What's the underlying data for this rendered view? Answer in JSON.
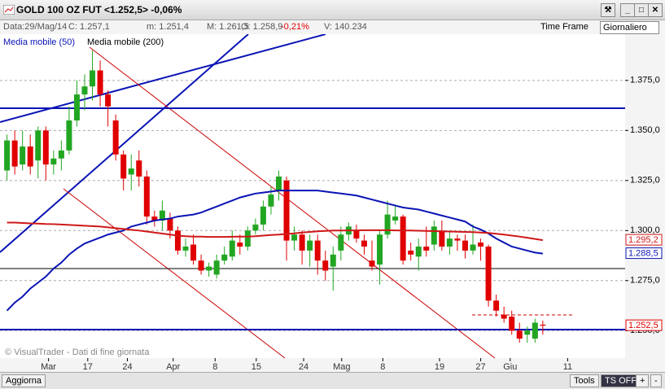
{
  "window": {
    "title": "GOLD 100 OZ FUT <1.252,5> -0,06%"
  },
  "info_bar": {
    "date": "Data:29/Mag/14",
    "close": "C: 1.257,1",
    "min": "m: 1.251,4",
    "max": "M: 1.261,5",
    "open": "O: 1.258,9",
    "change": "-0,21%",
    "volume": "V: 140.234",
    "time_frame": "Time Frame",
    "period": "Giornaliero"
  },
  "watermark": "© VisualTrader - Dati di fine giornata",
  "toolbar": {
    "refresh": "Aggiorna",
    "tools": "Tools",
    "ts": "TS OFF",
    "plus": "+",
    "minus": "-"
  },
  "chart_data": {
    "type": "candlestick",
    "up_color": "#22a622",
    "down_color": "#e00000",
    "grid": true,
    "ylim": [
      1236.3,
      1398.1
    ],
    "yticks": [
      {
        "value": 1250,
        "label": "1.250,0"
      },
      {
        "value": 1275,
        "label": "1.275,0"
      },
      {
        "value": 1300,
        "label": "1.300,0"
      },
      {
        "value": 1325,
        "label": "1.325,0"
      },
      {
        "value": 1350,
        "label": "1.350,0"
      },
      {
        "value": 1375,
        "label": "1.375,0"
      }
    ],
    "xlim": [
      -0.9,
      79.6
    ],
    "xticks": [
      {
        "value": 5.35,
        "label": "Mar"
      },
      {
        "value": 10.4,
        "label": "17"
      },
      {
        "value": 15.5,
        "label": "24"
      },
      {
        "value": 21.4,
        "label": "Apr"
      },
      {
        "value": 26.8,
        "label": "8"
      },
      {
        "value": 32.1,
        "label": "15"
      },
      {
        "value": 38.2,
        "label": "24"
      },
      {
        "value": 43.1,
        "label": "Mag"
      },
      {
        "value": 48.4,
        "label": "8"
      },
      {
        "value": 55.7,
        "label": "19"
      },
      {
        "value": 61,
        "label": "27"
      },
      {
        "value": 64.8,
        "label": "Giu"
      },
      {
        "value": 72.2,
        "label": "11"
      }
    ],
    "candles": {
      "open": [
        1330,
        1345,
        1333,
        1342,
        1335,
        1350,
        1333,
        1336,
        1340,
        1355,
        1368,
        1372,
        1380,
        1368,
        1355,
        1338,
        1328,
        1335,
        1327,
        1307,
        1305,
        1306,
        1300,
        1290,
        1293,
        1285,
        1280,
        1278,
        1285,
        1287,
        1294,
        1292,
        1300,
        1303,
        1312,
        1320,
        1325,
        1295,
        1298,
        1290,
        1295,
        1285,
        1282,
        1290,
        1298,
        1300,
        1295,
        1285,
        1283,
        1298,
        1305,
        1307,
        1290,
        1287,
        1292,
        1293,
        1300,
        1292,
        1296,
        1295,
        1290,
        1294,
        1292,
        1265,
        1258,
        1257,
        1250,
        1248,
        1246,
        1253
      ],
      "high": [
        1348,
        1350,
        1350,
        1348,
        1352,
        1352,
        1340,
        1345,
        1362,
        1375,
        1378,
        1390,
        1385,
        1370,
        1358,
        1340,
        1338,
        1340,
        1330,
        1310,
        1315,
        1309,
        1302,
        1296,
        1298,
        1288,
        1284,
        1288,
        1292,
        1300,
        1298,
        1302,
        1306,
        1315,
        1322,
        1330,
        1327,
        1302,
        1300,
        1298,
        1298,
        1290,
        1292,
        1302,
        1304,
        1303,
        1298,
        1295,
        1300,
        1315,
        1313,
        1308,
        1294,
        1296,
        1302,
        1305,
        1305,
        1300,
        1298,
        1298,
        1303,
        1296,
        1293,
        1268,
        1262,
        1260,
        1254,
        1252,
        1256,
        1255
      ],
      "low": [
        1325,
        1328,
        1330,
        1328,
        1326,
        1325,
        1328,
        1330,
        1338,
        1352,
        1360,
        1365,
        1362,
        1352,
        1335,
        1320,
        1320,
        1322,
        1303,
        1302,
        1300,
        1296,
        1288,
        1287,
        1283,
        1278,
        1277,
        1276,
        1283,
        1285,
        1288,
        1290,
        1298,
        1300,
        1308,
        1315,
        1285,
        1290,
        1283,
        1282,
        1278,
        1275,
        1270,
        1285,
        1295,
        1294,
        1288,
        1280,
        1273,
        1296,
        1303,
        1283,
        1285,
        1280,
        1287,
        1290,
        1290,
        1288,
        1290,
        1286,
        1288,
        1285,
        1262,
        1257,
        1254,
        1248,
        1244,
        1244,
        1244,
        1248
      ],
      "close": [
        1345,
        1332,
        1342,
        1332,
        1350,
        1333,
        1336,
        1340,
        1355,
        1368,
        1372,
        1380,
        1368,
        1362,
        1338,
        1326,
        1331,
        1327,
        1307,
        1305,
        1310,
        1300,
        1290,
        1292,
        1285,
        1280,
        1282,
        1285,
        1288,
        1295,
        1292,
        1300,
        1303,
        1312,
        1318,
        1327,
        1295,
        1298,
        1290,
        1295,
        1285,
        1280,
        1288,
        1298,
        1302,
        1296,
        1292,
        1282,
        1298,
        1308,
        1307,
        1285,
        1288,
        1292,
        1290,
        1302,
        1292,
        1296,
        1295,
        1290,
        1293,
        1292,
        1265,
        1260,
        1256,
        1250,
        1246,
        1250,
        1254,
        1252.5
      ],
      "close_label": "1.252,5"
    },
    "series": [
      {
        "name": "Media mobile (50)",
        "color": "#0a14b4",
        "last_value_label": "1.288,5",
        "values": [
          1260,
          1264,
          1267,
          1271,
          1274,
          1277,
          1281,
          1284,
          1288,
          1291,
          1293.5,
          1295,
          1296.5,
          1298,
          1299,
          1300,
          1302,
          1303,
          1304,
          1305,
          1305.5,
          1306,
          1307,
          1307.5,
          1308,
          1309,
          1310.5,
          1312,
          1313.5,
          1315,
          1316.5,
          1317.5,
          1318.5,
          1319,
          1319.5,
          1320,
          1320,
          1320,
          1320,
          1320,
          1320,
          1319.5,
          1319,
          1318.5,
          1318,
          1317.5,
          1316.5,
          1315.5,
          1314.5,
          1313.5,
          1312.5,
          1311.5,
          1311,
          1310.5,
          1309.5,
          1308.5,
          1307.5,
          1306.5,
          1305.5,
          1304.5,
          1302,
          1300.5,
          1298.5,
          1296,
          1294,
          1292,
          1291,
          1290,
          1289,
          1288.5
        ]
      },
      {
        "name": "Media mobile (200)",
        "color": "#d01818",
        "last_value_label": "1.295,2",
        "values": [
          1304,
          1304,
          1303.8,
          1303.6,
          1303.5,
          1303.3,
          1303.2,
          1303,
          1302.8,
          1302.6,
          1302.4,
          1302.2,
          1302,
          1301.6,
          1301.2,
          1300.8,
          1300.4,
          1300,
          1299.5,
          1299,
          1298.5,
          1298,
          1297.5,
          1297.2,
          1297,
          1297,
          1296.8,
          1296.8,
          1296.8,
          1296.9,
          1297,
          1297,
          1297.2,
          1297.5,
          1297.8,
          1298,
          1298.3,
          1298.6,
          1299,
          1299.3,
          1299.6,
          1299.8,
          1300,
          1300,
          1300.1,
          1300.1,
          1300.2,
          1300.2,
          1300.2,
          1300.2,
          1300.1,
          1300,
          1300,
          1299.9,
          1299.8,
          1299.7,
          1299.6,
          1299.5,
          1299.4,
          1299.3,
          1299.2,
          1299,
          1298.8,
          1298.4,
          1298,
          1297.5,
          1297,
          1296.4,
          1295.8,
          1295.2
        ]
      }
    ]
  }
}
